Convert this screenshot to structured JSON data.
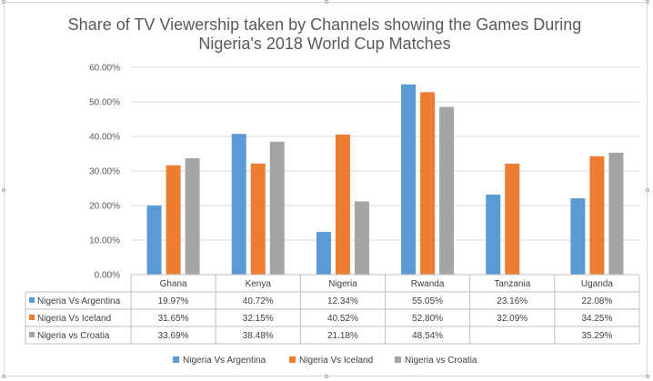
{
  "chart_data": {
    "type": "bar",
    "title_lines": [
      "Share of TV Viewership taken by Channels showing the Games During",
      "Nigeria's 2018 World Cup Matches"
    ],
    "categories": [
      "Ghana",
      "Kenya",
      "Nigeria",
      "Rwanda",
      "Tanzania",
      "Uganda"
    ],
    "series": [
      {
        "name": "Nigeria Vs Argentina",
        "color": "#5b9bd5",
        "values": [
          19.97,
          40.72,
          12.34,
          55.05,
          23.16,
          22.08
        ],
        "labels": [
          "19.97%",
          "40.72%",
          "12.34%",
          "55.05%",
          "23.16%",
          "22.08%"
        ]
      },
      {
        "name": "Nigeria Vs Iceland",
        "color": "#ed7d31",
        "values": [
          31.65,
          32.15,
          40.52,
          52.8,
          32.09,
          34.25
        ],
        "labels": [
          "31.65%",
          "32.15%",
          "40.52%",
          "52.80%",
          "32.09%",
          "34.25%"
        ]
      },
      {
        "name": "Nigeria vs Croatia",
        "color": "#a5a5a5",
        "values": [
          33.69,
          38.48,
          21.18,
          48.54,
          null,
          35.29
        ],
        "labels": [
          "33.69%",
          "38.48%",
          "21.18%",
          "48.54%",
          "",
          "35.29%"
        ]
      }
    ],
    "y_ticks": [
      "0.00%",
      "10.00%",
      "20.00%",
      "30.00%",
      "40.00%",
      "50.00%",
      "60.00%"
    ],
    "ylim": [
      0,
      60
    ],
    "grid": true,
    "data_table": true,
    "legend_position": "bottom"
  }
}
